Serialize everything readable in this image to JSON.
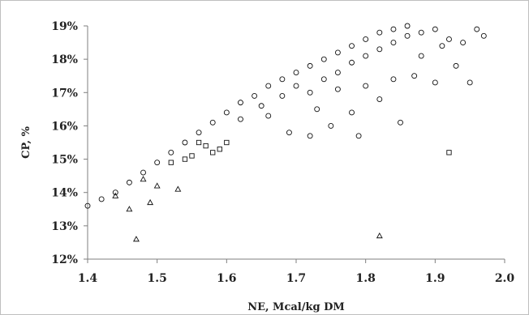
{
  "chart_data": {
    "type": "scatter",
    "title": "",
    "xlabel": "NE, Mcal/kg DM",
    "ylabel": "CP, %",
    "xlim": [
      1.4,
      2.0
    ],
    "ylim": [
      12,
      19
    ],
    "xticks": [
      "1.4",
      "1.5",
      "1.6",
      "1.7",
      "1.8",
      "1.9",
      "2.0"
    ],
    "yticks": [
      "12%",
      "13%",
      "14%",
      "15%",
      "16%",
      "17%",
      "18%",
      "19%"
    ],
    "grid": false,
    "legend": "none",
    "series": [
      {
        "marker": "circle",
        "points": [
          [
            1.4,
            13.6
          ],
          [
            1.42,
            13.8
          ],
          [
            1.44,
            14.0
          ],
          [
            1.46,
            14.3
          ],
          [
            1.48,
            14.6
          ],
          [
            1.5,
            14.9
          ],
          [
            1.52,
            15.2
          ],
          [
            1.54,
            15.5
          ],
          [
            1.56,
            15.8
          ],
          [
            1.58,
            16.1
          ],
          [
            1.6,
            16.4
          ],
          [
            1.62,
            16.7
          ],
          [
            1.64,
            16.9
          ],
          [
            1.66,
            17.2
          ],
          [
            1.68,
            17.4
          ],
          [
            1.7,
            17.6
          ],
          [
            1.72,
            17.8
          ],
          [
            1.74,
            18.0
          ],
          [
            1.76,
            18.2
          ],
          [
            1.78,
            18.4
          ],
          [
            1.8,
            18.6
          ],
          [
            1.82,
            18.8
          ],
          [
            1.84,
            18.9
          ],
          [
            1.86,
            19.0
          ],
          [
            1.62,
            16.2
          ],
          [
            1.65,
            16.6
          ],
          [
            1.68,
            16.9
          ],
          [
            1.7,
            17.2
          ],
          [
            1.72,
            17.0
          ],
          [
            1.74,
            17.4
          ],
          [
            1.76,
            17.6
          ],
          [
            1.78,
            17.9
          ],
          [
            1.8,
            18.1
          ],
          [
            1.82,
            18.3
          ],
          [
            1.84,
            18.5
          ],
          [
            1.86,
            18.7
          ],
          [
            1.88,
            18.8
          ],
          [
            1.9,
            18.9
          ],
          [
            1.92,
            18.6
          ],
          [
            1.94,
            18.5
          ],
          [
            1.96,
            18.9
          ],
          [
            1.97,
            18.7
          ],
          [
            1.66,
            16.3
          ],
          [
            1.69,
            15.8
          ],
          [
            1.72,
            15.7
          ],
          [
            1.75,
            16.0
          ],
          [
            1.78,
            16.4
          ],
          [
            1.8,
            17.2
          ],
          [
            1.82,
            16.8
          ],
          [
            1.84,
            17.4
          ],
          [
            1.85,
            16.1
          ],
          [
            1.87,
            17.5
          ],
          [
            1.9,
            17.3
          ],
          [
            1.93,
            17.8
          ],
          [
            1.95,
            17.3
          ],
          [
            1.88,
            18.1
          ],
          [
            1.91,
            18.4
          ],
          [
            1.79,
            15.7
          ],
          [
            1.76,
            17.1
          ],
          [
            1.73,
            16.5
          ]
        ]
      },
      {
        "marker": "square",
        "points": [
          [
            1.52,
            14.9
          ],
          [
            1.55,
            15.1
          ],
          [
            1.57,
            15.4
          ],
          [
            1.58,
            15.2
          ],
          [
            1.6,
            15.5
          ],
          [
            1.59,
            15.3
          ],
          [
            1.54,
            15.0
          ],
          [
            1.56,
            15.5
          ],
          [
            1.92,
            15.2
          ]
        ]
      },
      {
        "marker": "triangle",
        "points": [
          [
            1.44,
            13.9
          ],
          [
            1.46,
            13.5
          ],
          [
            1.47,
            12.6
          ],
          [
            1.49,
            13.7
          ],
          [
            1.53,
            14.1
          ],
          [
            1.5,
            14.2
          ],
          [
            1.48,
            14.4
          ],
          [
            1.82,
            12.7
          ]
        ]
      }
    ]
  }
}
